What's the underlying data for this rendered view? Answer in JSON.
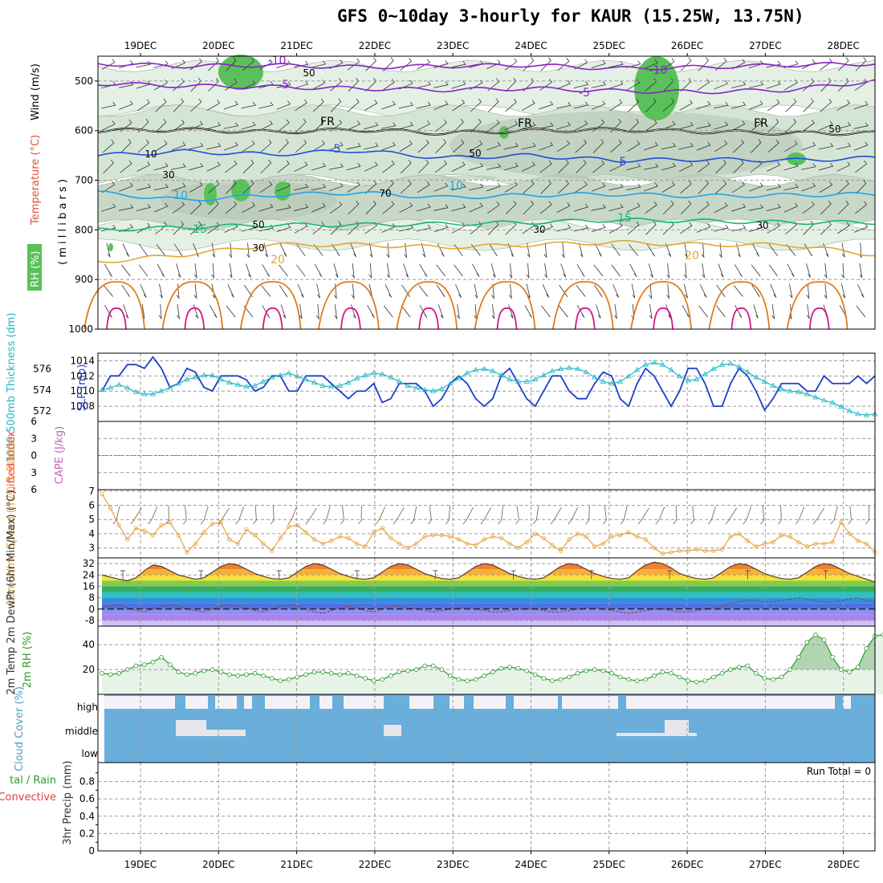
{
  "title": "GFS 0~10day 3-hourly for KAUR (15.25W, 13.75N)",
  "dates": [
    "19DEC",
    "20DEC",
    "21DEC",
    "22DEC",
    "23DEC",
    "24DEC",
    "25DEC",
    "26DEC",
    "27DEC",
    "28DEC"
  ],
  "colors": {
    "rh_green": "#59c159",
    "rh_light": "#e4f1e4",
    "temp_purple": "#8a22c8",
    "temp_blue": "#1f4fd8",
    "temp_cyan": "#22a4e6",
    "temp_green": "#15b86e",
    "temp_yellow": "#e6a532",
    "temp_orange": "#e07b1d",
    "temp_magenta": "#d8138b",
    "slp_blue": "#1e3fd0",
    "thickness_cyan": "#22b6c6",
    "wind_orange": "#e6a23c",
    "cloud_blue": "#6aaedc",
    "rh2m_green": "#2d9a2d"
  },
  "chart_data": [
    {
      "type": "contour",
      "name": "upper-air",
      "ylabel_parts": [
        "Wind (m/s)",
        "Temperature (°C)",
        "RH (%)"
      ],
      "ylabel_unit": "( m i l l i b a r s )",
      "y_ticks": [
        "500",
        "600",
        "700",
        "800",
        "900",
        "1000"
      ],
      "ylim": [
        1000,
        450
      ],
      "temperature_contours": [
        {
          "label": "-10",
          "pressure": [
            465,
            470,
            468,
            472,
            470,
            468,
            475,
            472,
            468,
            465
          ]
        },
        {
          "label": "-5",
          "pressure": [
            505,
            510,
            512,
            515,
            518,
            515,
            520,
            522,
            518,
            500
          ]
        },
        {
          "label": "FR",
          "pressure": [
            600,
            598,
            603,
            598,
            605,
            600,
            598,
            602,
            605,
            605
          ]
        },
        {
          "label": "5",
          "pressure": [
            650,
            642,
            648,
            640,
            655,
            650,
            660,
            658,
            660,
            655
          ]
        },
        {
          "label": "10",
          "pressure": [
            725,
            740,
            730,
            725,
            735,
            730,
            728,
            732,
            730,
            728
          ]
        },
        {
          "label": "15",
          "pressure": [
            800,
            795,
            790,
            790,
            788,
            785,
            780,
            782,
            785,
            785
          ]
        },
        {
          "label": "20",
          "pressure": [
            865,
            850,
            830,
            830,
            835,
            830,
            825,
            830,
            830,
            850
          ]
        }
      ],
      "rh_labels": [
        "10",
        "30",
        "50",
        "70",
        "30",
        "50",
        "30",
        "50",
        "50",
        "30"
      ],
      "contour_labels": [
        "-10",
        "-5",
        "FR",
        "5",
        "10",
        "15",
        "20",
        "-10",
        "-5",
        "FR",
        "5",
        "10",
        "15",
        "20",
        "FR"
      ]
    },
    {
      "type": "line",
      "name": "slp-thickness",
      "ylabel": "1000-500mb Thickness (dm)",
      "ylabel_right": "SLP (mb)",
      "y_ticks_left": [
        "576",
        "574",
        "572"
      ],
      "y_ticks_right": [
        "1014",
        "1012",
        "1010",
        "1008"
      ],
      "ylim_slp": [
        1006,
        1015
      ],
      "series": [
        {
          "name": "SLP (mb)",
          "values": [
            1010,
            1012,
            1012,
            1013.5,
            1013.5,
            1013,
            1014.5,
            1013,
            1010.5,
            1011,
            1013,
            1012.5,
            1010.5,
            1010,
            1012,
            1012,
            1012,
            1011.5,
            1010,
            1010.5,
            1012,
            1012,
            1010,
            1010,
            1012,
            1012,
            1012,
            1011,
            1010,
            1009,
            1010,
            1010,
            1011,
            1008.5,
            1009,
            1011,
            1011,
            1011,
            1010,
            1008,
            1009,
            1011,
            1012,
            1011,
            1009,
            1008,
            1009,
            1012,
            1013,
            1011,
            1009,
            1008,
            1010,
            1012,
            1012,
            1010,
            1009,
            1009,
            1011,
            1012.5,
            1012,
            1009,
            1008,
            1011,
            1013,
            1012,
            1010,
            1008,
            1010,
            1013,
            1013,
            1011,
            1008,
            1008,
            1011,
            1013,
            1012,
            1010,
            1007.5,
            1009,
            1011,
            1011,
            1011,
            1010,
            1010,
            1012,
            1011,
            1011,
            1011,
            1012,
            1011,
            1012
          ]
        },
        {
          "name": "1000-500mb Thickness (dm)",
          "values": [
            574,
            574.2,
            574.5,
            574.2,
            573.8,
            573.6,
            573.6,
            573.9,
            574.2,
            574.6,
            575,
            575.2,
            575.4,
            575.4,
            575,
            574.7,
            574.5,
            574.3,
            574.4,
            574.8,
            575.2,
            575.4,
            575.6,
            575.3,
            575,
            574.7,
            574.4,
            574.3,
            574.4,
            574.7,
            575.1,
            575.4,
            575.6,
            575.5,
            575.2,
            574.8,
            574.4,
            574.2,
            574,
            573.9,
            574.1,
            574.6,
            575.1,
            575.6,
            575.9,
            576,
            575.8,
            575.4,
            575,
            574.8,
            574.8,
            575,
            575.4,
            575.8,
            576,
            576.1,
            576,
            575.7,
            575.2,
            574.8,
            574.6,
            574.8,
            575.3,
            575.9,
            576.4,
            576.6,
            576.4,
            575.9,
            575.3,
            574.9,
            575,
            575.5,
            576,
            576.4,
            576.5,
            576.2,
            575.7,
            575.2,
            574.8,
            574.4,
            574.1,
            573.9,
            573.8,
            573.6,
            573.3,
            573,
            572.8,
            572.4,
            572,
            571.7,
            571.6,
            571.7
          ]
        }
      ]
    },
    {
      "type": "line",
      "name": "cape-lifted-index",
      "ylabel": "Lifted Index",
      "ylabel_right": "CAPE (J/kg)",
      "y_ticks": [
        "6",
        "3",
        "0",
        "3",
        "6"
      ],
      "ylim": [
        -6,
        6
      ],
      "series": [
        {
          "name": "Lifted Index",
          "values": [
            0,
            0
          ]
        }
      ]
    },
    {
      "type": "line",
      "name": "10m-wind",
      "ylabel": "10m Wind Speed (m/s) & Barbs",
      "y_ticks": [
        "7",
        "6",
        "5",
        "4",
        "3"
      ],
      "ylim": [
        2,
        7
      ],
      "series": [
        {
          "name": "10m Wind Speed (m/s)",
          "values": [
            6.8,
            5.8,
            4.6,
            3.6,
            4.4,
            4.2,
            3.9,
            4.6,
            4.8,
            3.9,
            2.7,
            3.3,
            4.1,
            4.7,
            4.8,
            3.6,
            3.3,
            4.3,
            3.9,
            3.3,
            2.8,
            3.7,
            4.5,
            4.6,
            4.1,
            3.6,
            3.3,
            3.5,
            3.8,
            3.7,
            3.3,
            3.1,
            4.1,
            4.4,
            3.7,
            3.3,
            3.0,
            3.3,
            3.8,
            3.9,
            3.9,
            3.8,
            3.6,
            3.3,
            3.2,
            3.6,
            3.8,
            3.7,
            3.3,
            3.0,
            3.4,
            4.0,
            3.7,
            3.2,
            2.8,
            3.6,
            4.0,
            3.8,
            3.1,
            3.3,
            3.8,
            3.9,
            4.1,
            3.8,
            3.6,
            3.0,
            2.6,
            2.7,
            2.8,
            2.8,
            2.9,
            2.8,
            2.8,
            2.9,
            3.8,
            4.0,
            3.5,
            3.1,
            3.3,
            3.4,
            3.9,
            3.8,
            3.4,
            3.1,
            3.3,
            3.3,
            3.4,
            4.8,
            4.0,
            3.5,
            3.3,
            2.7
          ]
        }
      ]
    },
    {
      "type": "area",
      "name": "2m-temperature",
      "ylabel": "2m Temp 2m DewPt (6hr Min/Max) (°C)",
      "y_ticks": [
        "32",
        "24",
        "16",
        "8",
        "0",
        "-8"
      ],
      "ylim": [
        -12,
        36
      ],
      "series": [
        {
          "name": "2m Temp",
          "values": [
            24,
            22.5,
            21,
            20,
            22,
            27,
            31,
            30,
            27,
            24,
            22.5,
            21,
            22,
            26,
            30,
            32,
            31,
            28,
            25,
            23,
            21.5,
            21,
            22,
            26,
            30,
            32,
            31,
            28,
            25,
            23,
            21.5,
            21,
            22,
            26,
            30,
            32,
            31,
            28,
            25,
            23,
            21.5,
            21,
            22,
            26,
            30,
            32,
            31,
            28,
            25,
            23,
            21.5,
            21,
            22,
            26,
            30,
            32,
            31,
            28,
            25,
            23,
            21.5,
            21,
            22,
            27,
            31,
            33,
            32,
            29,
            25,
            23,
            21.5,
            21,
            22,
            26,
            30,
            32,
            31,
            28,
            25,
            23,
            21.5,
            21,
            22,
            26,
            30,
            32,
            31,
            28,
            25,
            23,
            21,
            19
          ]
        },
        {
          "name": "2m DewPt",
          "values": [
            1,
            2,
            3,
            1,
            -1,
            -2,
            0,
            2,
            3,
            2,
            0,
            -1,
            -2,
            0,
            2,
            3,
            2,
            1,
            -1,
            -2,
            0,
            2,
            3,
            2,
            0,
            -2,
            -3,
            -1,
            1,
            2,
            1,
            -1,
            -2,
            0,
            2,
            2,
            1,
            0,
            -1,
            -2,
            -1,
            0,
            1,
            1,
            0,
            -1,
            -2,
            -2,
            -1,
            0,
            0,
            0,
            -1,
            -2,
            -2,
            -1,
            0,
            1,
            1,
            0,
            -1,
            -2,
            -3,
            -2,
            -1,
            0,
            0,
            -1,
            -2,
            -2,
            -1,
            0,
            1,
            2,
            4,
            5,
            6,
            6,
            5,
            5,
            6,
            7,
            8,
            7,
            6,
            5,
            5,
            6,
            7,
            8,
            6,
            5
          ]
        }
      ]
    },
    {
      "type": "area",
      "name": "2m-rh",
      "ylabel": "2m RH (%)",
      "y_ticks": [
        "40",
        "20"
      ],
      "ylim": [
        0,
        55
      ],
      "series": [
        {
          "name": "2m RH",
          "values": [
            17,
            16,
            17,
            20,
            23,
            24,
            26,
            30,
            24,
            18,
            16,
            17,
            19,
            20,
            18,
            16,
            15,
            16,
            17,
            15,
            13,
            11,
            12,
            14,
            16,
            18,
            18,
            17,
            16,
            17,
            15,
            13,
            11,
            12,
            15,
            18,
            19,
            20,
            23,
            23,
            20,
            15,
            12,
            11,
            12,
            15,
            18,
            21,
            22,
            21,
            19,
            16,
            13,
            11,
            12,
            14,
            17,
            19,
            20,
            19,
            17,
            14,
            12,
            11,
            12,
            15,
            18,
            17,
            14,
            11,
            10,
            11,
            14,
            17,
            20,
            22,
            23,
            17,
            13,
            12,
            14,
            20,
            30,
            42,
            48,
            44,
            30,
            20,
            18,
            22,
            37,
            47,
            48,
            46
          ]
        }
      ]
    },
    {
      "type": "heatmap",
      "name": "cloud-cover",
      "ylabel": "Cloud Cover (%)",
      "levels": [
        "high",
        "middle",
        "low"
      ]
    },
    {
      "type": "bar",
      "name": "precipitation",
      "ylabel": "3hr Precip (mm)",
      "ylabel_legend": [
        "tal / Rain",
        "Convective"
      ],
      "y_ticks": [
        "0.8",
        "0.6",
        "0.4",
        "0.2",
        "0"
      ],
      "ylim": [
        0,
        1
      ],
      "run_total": "Run Total = 0",
      "values": []
    }
  ]
}
